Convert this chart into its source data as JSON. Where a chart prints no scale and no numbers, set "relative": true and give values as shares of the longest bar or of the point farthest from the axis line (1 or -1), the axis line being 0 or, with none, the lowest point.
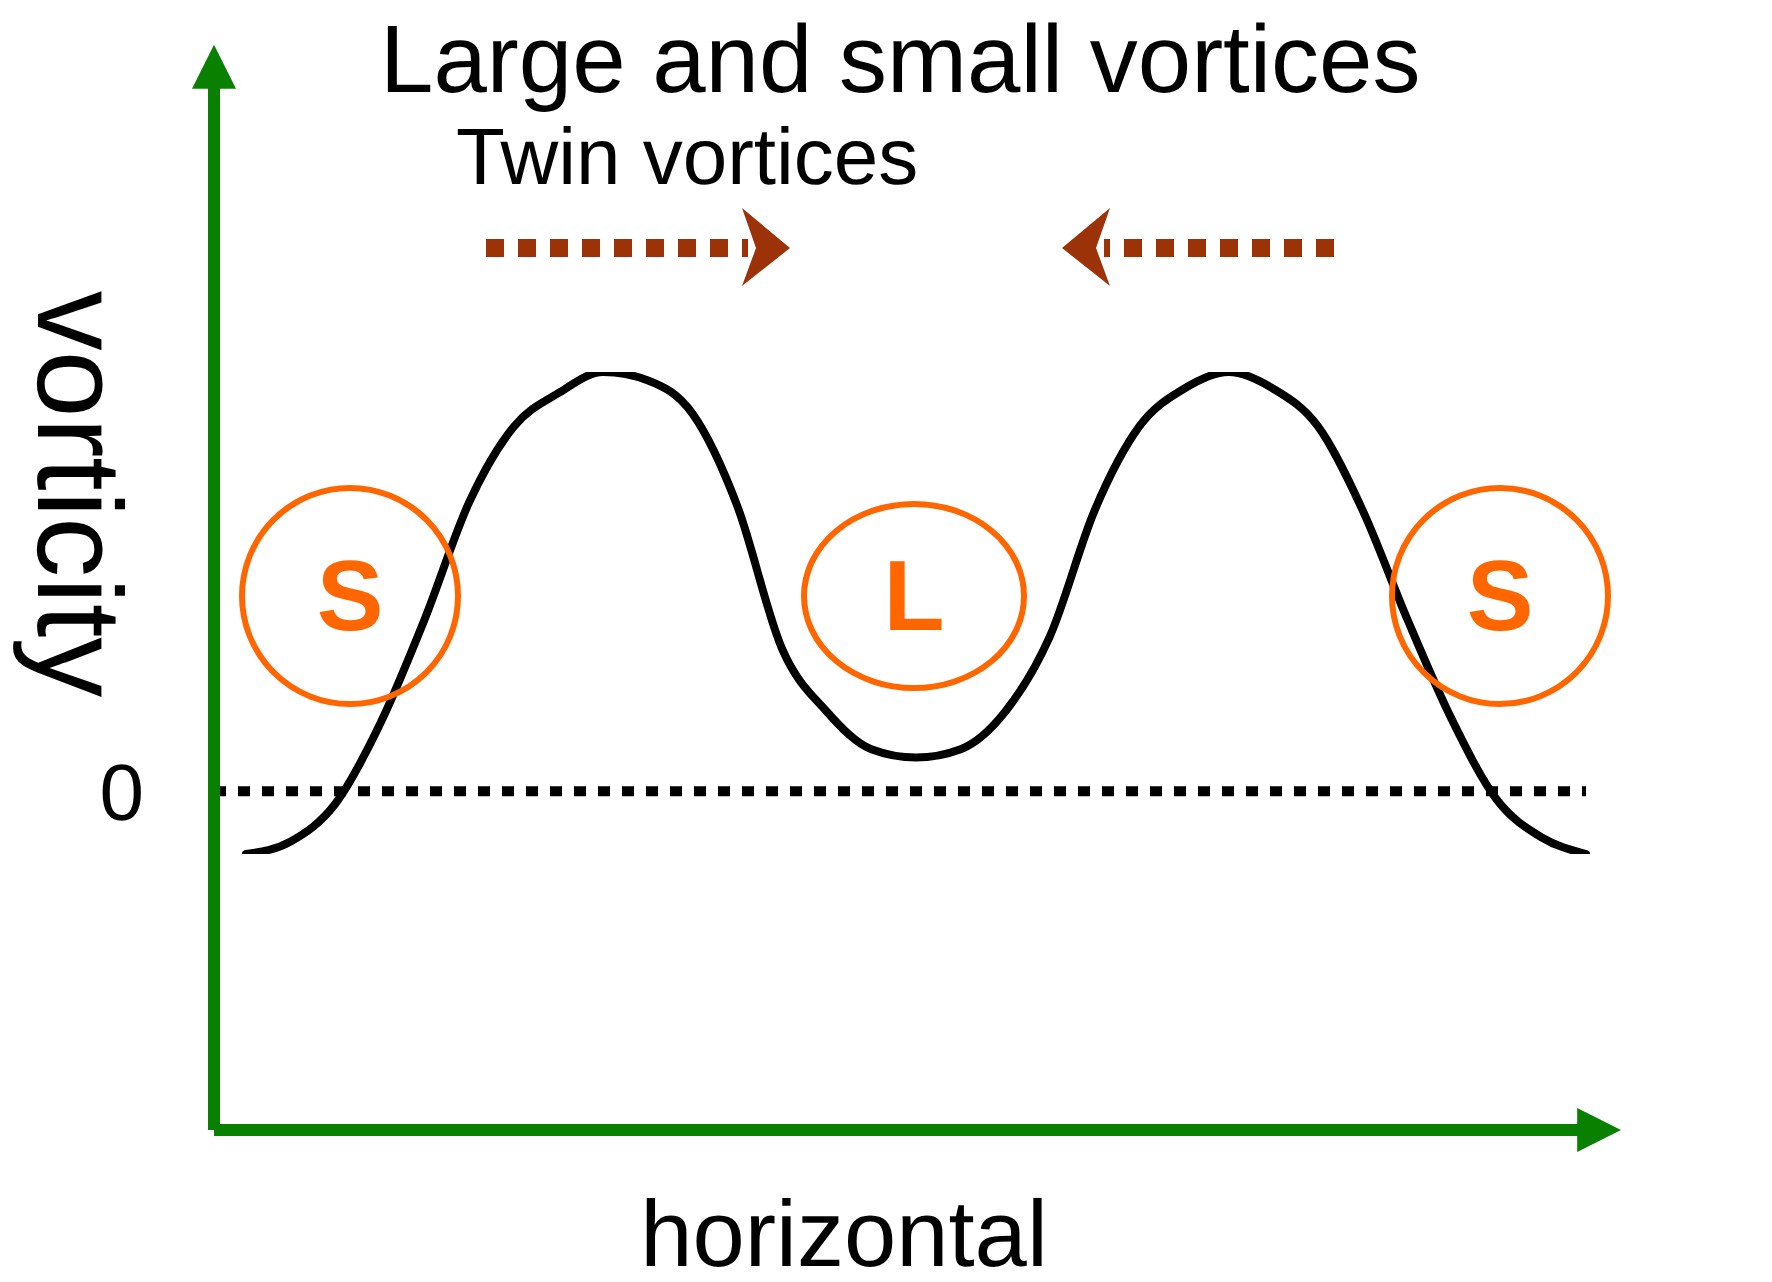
{
  "chart_data": {
    "type": "line",
    "title": "Large and small vortices",
    "subtitle": "Twin vortices",
    "xlabel": "horizontal",
    "ylabel": "vorticity",
    "categories": [
      null,
      null,
      null,
      null,
      null,
      null,
      null,
      null,
      null,
      null,
      null,
      null,
      null,
      null,
      null,
      null,
      null,
      null,
      null,
      null,
      null,
      null,
      null,
      null,
      null,
      null,
      null,
      null,
      null,
      null,
      null
    ],
    "values": [
      -0.15,
      -0.12,
      -0.03,
      0.16,
      0.41,
      0.69,
      0.87,
      0.95,
      1.0,
      0.98,
      0.9,
      0.68,
      0.34,
      0.19,
      0.1,
      0.08,
      0.1,
      0.19,
      0.37,
      0.67,
      0.87,
      0.96,
      1.0,
      0.96,
      0.87,
      0.67,
      0.41,
      0.17,
      -0.02,
      -0.11,
      -0.15
    ],
    "color": "#000000",
    "relative": true,
    "ref_lines": [
      {
        "axis": "y",
        "value": 0,
        "label": "0",
        "line_style": "dotted",
        "color": "#000000"
      }
    ],
    "annotations": [
      "S",
      "L",
      "S"
    ]
  }
}
